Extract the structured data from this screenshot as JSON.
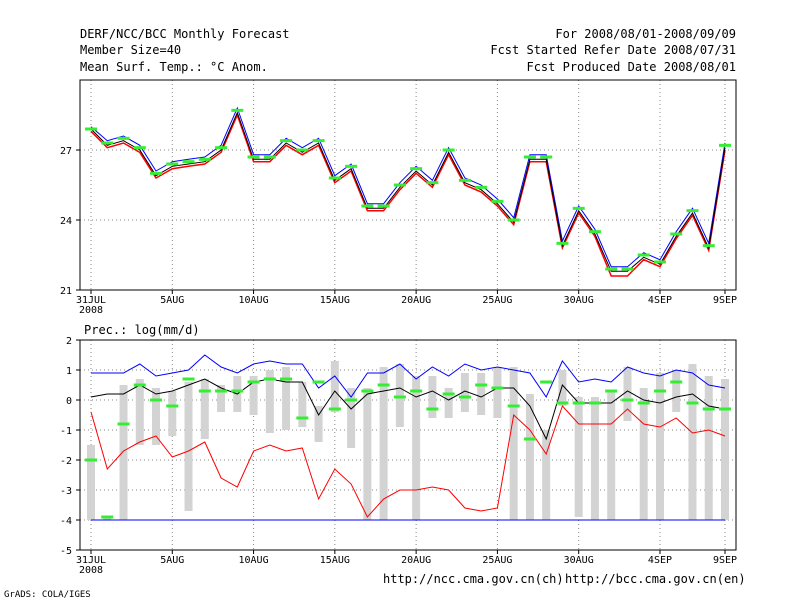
{
  "header": {
    "title_left": "DERF/NCC/BCC Monthly Forecast",
    "member_size": "Member Size=40",
    "variable": "Mean Surf. Temp.: °C Anom.",
    "period": "For 2008/08/01-2008/09/09",
    "refer_date": "Fcst Started Refer Date 2008/07/31",
    "produced_date": "Fcst Produced Date 2008/08/01"
  },
  "footer": {
    "url_ch": "http://ncc.cma.gov.cn(ch)",
    "url_en": "http://bcc.cma.gov.cn(en)",
    "grads": "GrADS: COLA/IGES"
  },
  "colors": {
    "mean": "#000000",
    "max": "#0000ff",
    "min": "#ff0000",
    "marker": "#33ee33",
    "box": "#d3d3d3"
  },
  "chart_data": [
    {
      "type": "line",
      "title": "",
      "ylabel": "",
      "ylim": [
        21,
        30
      ],
      "yticks": [
        21,
        24,
        27
      ],
      "x": [
        0,
        1,
        2,
        3,
        4,
        5,
        6,
        7,
        8,
        9,
        10,
        11,
        12,
        13,
        14,
        15,
        16,
        17,
        18,
        19,
        20,
        21,
        22,
        23,
        24,
        25,
        26,
        27,
        28,
        29,
        30,
        31,
        32,
        33,
        34,
        35,
        36,
        37,
        38,
        39
      ],
      "xticks": [
        {
          "x": 0,
          "label": "31JUL",
          "sublabel": "2008"
        },
        {
          "x": 5,
          "label": "5AUG"
        },
        {
          "x": 10,
          "label": "10AUG"
        },
        {
          "x": 15,
          "label": "15AUG"
        },
        {
          "x": 20,
          "label": "20AUG"
        },
        {
          "x": 25,
          "label": "25AUG"
        },
        {
          "x": 30,
          "label": "30AUG"
        },
        {
          "x": 35,
          "label": "4SEP"
        },
        {
          "x": 39,
          "label": "9SEP"
        }
      ],
      "series": [
        {
          "name": "mean",
          "values": [
            27.9,
            27.2,
            27.4,
            27.0,
            25.9,
            26.3,
            26.4,
            26.5,
            27.0,
            28.6,
            26.6,
            26.6,
            27.3,
            26.9,
            27.3,
            25.7,
            26.2,
            24.5,
            24.5,
            25.4,
            26.1,
            25.5,
            26.9,
            25.6,
            25.3,
            24.7,
            23.9,
            26.6,
            26.6,
            22.9,
            24.4,
            23.4,
            21.8,
            21.8,
            22.4,
            22.1,
            23.3,
            24.3,
            22.8,
            27.1
          ]
        },
        {
          "name": "max",
          "values": [
            28.0,
            27.4,
            27.6,
            27.2,
            26.1,
            26.5,
            26.6,
            26.7,
            27.2,
            28.8,
            26.8,
            26.8,
            27.5,
            27.1,
            27.5,
            25.9,
            26.4,
            24.7,
            24.7,
            25.6,
            26.3,
            25.7,
            27.1,
            25.8,
            25.5,
            24.9,
            24.1,
            26.8,
            26.8,
            23.1,
            24.6,
            23.6,
            22.0,
            22.0,
            22.6,
            22.3,
            23.5,
            24.5,
            23.0,
            27.3
          ]
        },
        {
          "name": "min",
          "values": [
            27.8,
            27.1,
            27.3,
            26.9,
            25.8,
            26.2,
            26.3,
            26.4,
            26.9,
            28.5,
            26.5,
            26.5,
            27.2,
            26.8,
            27.2,
            25.6,
            26.1,
            24.4,
            24.4,
            25.3,
            26.0,
            25.4,
            26.8,
            25.5,
            25.2,
            24.6,
            23.8,
            26.5,
            26.5,
            22.8,
            24.3,
            23.3,
            21.6,
            21.6,
            22.3,
            22.0,
            23.2,
            24.2,
            22.7,
            27.0
          ]
        },
        {
          "name": "observed",
          "values": [
            27.9,
            27.3,
            27.5,
            27.1,
            26.0,
            26.4,
            26.5,
            26.6,
            27.1,
            28.7,
            26.7,
            26.7,
            27.4,
            27.0,
            27.4,
            25.8,
            26.3,
            24.6,
            24.6,
            25.5,
            26.2,
            25.6,
            27.0,
            25.7,
            25.4,
            24.8,
            24.0,
            26.7,
            26.7,
            23.0,
            24.5,
            23.5,
            21.9,
            21.9,
            22.5,
            22.2,
            23.4,
            24.4,
            22.9,
            27.2
          ]
        }
      ]
    },
    {
      "type": "box",
      "title": "Prec.: log(mm/d)",
      "ylim": [
        -5,
        2
      ],
      "yticks": [
        -5,
        -4,
        -3,
        -2,
        -1,
        0,
        1,
        2
      ],
      "x": [
        0,
        1,
        2,
        3,
        4,
        5,
        6,
        7,
        8,
        9,
        10,
        11,
        12,
        13,
        14,
        15,
        16,
        17,
        18,
        19,
        20,
        21,
        22,
        23,
        24,
        25,
        26,
        27,
        28,
        29,
        30,
        31,
        32,
        33,
        34,
        35,
        36,
        37,
        38,
        39
      ],
      "xticks": [
        {
          "x": 0,
          "label": "31JUL",
          "sublabel": "2008"
        },
        {
          "x": 5,
          "label": "5AUG"
        },
        {
          "x": 10,
          "label": "10AUG"
        },
        {
          "x": 15,
          "label": "15AUG"
        },
        {
          "x": 20,
          "label": "20AUG"
        },
        {
          "x": 25,
          "label": "25AUG"
        },
        {
          "x": 30,
          "label": "30AUG"
        },
        {
          "x": 35,
          "label": "4SEP"
        },
        {
          "x": 39,
          "label": "9SEP"
        }
      ],
      "series": [
        {
          "name": "max",
          "values": [
            0.9,
            0.9,
            0.9,
            1.2,
            0.8,
            0.9,
            1.0,
            1.5,
            1.1,
            0.9,
            1.2,
            1.3,
            1.2,
            1.2,
            0.4,
            0.8,
            0.1,
            0.9,
            0.9,
            1.2,
            0.7,
            1.1,
            0.8,
            1.2,
            1.0,
            1.1,
            1.0,
            0.9,
            0.1,
            1.3,
            0.6,
            0.7,
            0.6,
            1.1,
            0.9,
            0.8,
            1.0,
            0.9,
            0.5,
            0.4
          ]
        },
        {
          "name": "mean",
          "values": [
            0.1,
            0.2,
            0.2,
            0.5,
            0.2,
            0.3,
            0.5,
            0.7,
            0.4,
            0.2,
            0.6,
            0.7,
            0.6,
            0.6,
            -0.5,
            0.3,
            -0.3,
            0.2,
            0.3,
            0.4,
            0.1,
            0.3,
            0.0,
            0.3,
            0.1,
            0.4,
            0.4,
            -0.2,
            -1.3,
            0.5,
            -0.1,
            -0.1,
            -0.1,
            0.3,
            0.0,
            -0.1,
            0.1,
            0.2,
            -0.2,
            -0.3
          ]
        },
        {
          "name": "min",
          "values": [
            -0.4,
            -2.3,
            -1.7,
            -1.4,
            -1.2,
            -1.9,
            -1.7,
            -1.4,
            -2.6,
            -2.9,
            -1.7,
            -1.5,
            -1.7,
            -1.6,
            -3.3,
            -2.3,
            -2.8,
            -3.9,
            -3.3,
            -3.0,
            -3.0,
            -2.9,
            -3.0,
            -3.6,
            -3.7,
            -3.6,
            -0.5,
            -1.0,
            -1.8,
            -0.2,
            -0.8,
            -0.8,
            -0.8,
            -0.3,
            -0.8,
            -0.9,
            -0.6,
            -1.1,
            -1.0,
            -1.2
          ]
        },
        {
          "name": "box_low",
          "values": [
            -4.0,
            -4.0,
            -4.0,
            -1.5,
            -1.5,
            -1.2,
            -3.7,
            -1.3,
            -0.4,
            -0.4,
            -0.5,
            -1.1,
            -1.0,
            -0.9,
            -1.4,
            -0.4,
            -1.6,
            -4.0,
            -4.0,
            -0.9,
            -4.0,
            -0.6,
            -0.6,
            -0.4,
            -0.5,
            -0.6,
            -4.0,
            -4.0,
            -4.0,
            -0.2,
            -3.9,
            -4.0,
            -4.0,
            -0.7,
            -4.0,
            -4.0,
            -0.4,
            -4.0,
            -4.0,
            -4.0
          ]
        },
        {
          "name": "box_high",
          "values": [
            -1.5,
            -3.9,
            0.5,
            0.7,
            0.4,
            0.3,
            0.6,
            0.7,
            0.5,
            0.8,
            0.8,
            1.0,
            1.1,
            0.6,
            -0.2,
            1.3,
            0.4,
            0.4,
            1.1,
            1.2,
            0.8,
            0.8,
            0.4,
            0.9,
            0.9,
            1.1,
            1.1,
            0.2,
            -1.0,
            1.0,
            0.1,
            0.1,
            0.3,
            1.1,
            0.4,
            0.9,
            1.0,
            1.2,
            0.8,
            0.7
          ]
        },
        {
          "name": "floor",
          "values": [
            -4.0,
            -4.0,
            -4.0,
            -4.0,
            -4.0,
            -4.0,
            -4.0,
            -4.0,
            -4.0,
            -4.0,
            -4.0,
            -4.0,
            -4.0,
            -4.0,
            -4.0,
            -4.0,
            -4.0,
            -4.0,
            -4.0,
            -4.0,
            -4.0,
            -4.0,
            -4.0,
            -4.0,
            -4.0,
            -4.0,
            -4.0,
            -4.0,
            -4.0,
            -4.0,
            -4.0,
            -4.0,
            -4.0,
            -4.0,
            -4.0,
            -4.0,
            -4.0,
            -4.0,
            -4.0,
            -4.0
          ]
        },
        {
          "name": "observed",
          "values": [
            -2.0,
            -3.9,
            -0.8,
            0.5,
            0.0,
            -0.2,
            0.7,
            0.3,
            0.3,
            0.3,
            0.6,
            0.7,
            0.7,
            -0.6,
            0.6,
            -0.3,
            0.0,
            0.3,
            0.5,
            0.1,
            0.3,
            -0.3,
            0.2,
            0.1,
            0.5,
            0.4,
            -0.2,
            -1.3,
            0.6,
            -0.1,
            -0.1,
            -0.1,
            0.3,
            0.0,
            -0.1,
            0.3,
            0.6,
            -0.1,
            -0.3,
            -0.3
          ]
        }
      ]
    }
  ]
}
